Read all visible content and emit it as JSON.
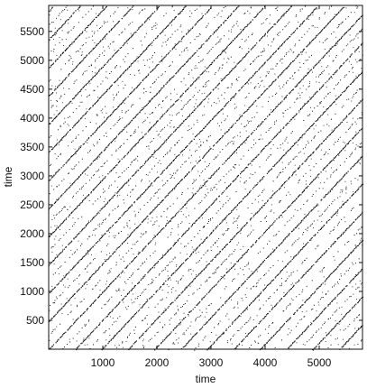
{
  "chart_data": {
    "type": "scatter",
    "title": "",
    "xlabel": "time",
    "ylabel": "time",
    "xlim": [
      0,
      5800
    ],
    "ylim": [
      0,
      5950
    ],
    "x_ticks": [
      1000,
      2000,
      3000,
      4000,
      5000
    ],
    "y_ticks": [
      500,
      1000,
      1500,
      2000,
      2500,
      3000,
      3500,
      4000,
      4500,
      5000,
      5500
    ],
    "grid": false,
    "legend": "none",
    "point_color": "#111111",
    "description_pattern": "recurrence plot",
    "diagonal_period": 488,
    "diagonal_offsets": [
      -5856,
      -5368,
      -4880,
      -4392,
      -3904,
      -3416,
      -2928,
      -2440,
      -1952,
      -1464,
      -976,
      -488,
      0,
      488,
      976,
      1464,
      1952,
      2440,
      2928,
      3416,
      3904,
      4392,
      4880,
      5368,
      5856
    ],
    "secondary_offsets": [
      -5612,
      -5124,
      -4636,
      -4148,
      -3660,
      -3172,
      -2684,
      -2196,
      -1708,
      -1220,
      -732,
      -244,
      244,
      732,
      1220,
      1708,
      2196,
      2684,
      3172,
      3660,
      4148,
      4636,
      5124,
      5612
    ]
  }
}
